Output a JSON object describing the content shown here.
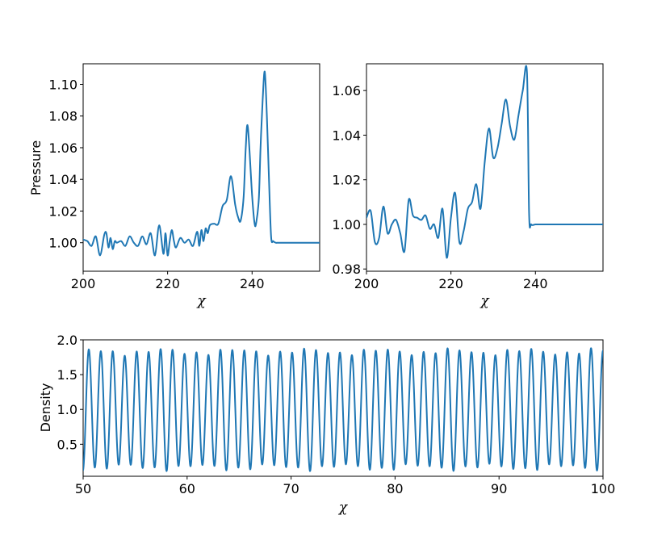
{
  "colors": {
    "series": "#1f77b4",
    "axes": "#000000",
    "background": "#ffffff"
  },
  "chart_data": [
    {
      "id": "top-left",
      "type": "line",
      "title": "",
      "xlabel": "χ",
      "ylabel": "Pressure",
      "xlim": [
        200,
        256
      ],
      "ylim": [
        0.982,
        1.113
      ],
      "xticks": [
        200,
        220,
        240
      ],
      "xtick_labels": [
        "200",
        "220",
        "240"
      ],
      "yticks": [
        1.0,
        1.02,
        1.04,
        1.06,
        1.08,
        1.1
      ],
      "ytick_labels": [
        "1.00",
        "1.02",
        "1.04",
        "1.06",
        "1.08",
        "1.10"
      ],
      "grid": false,
      "series": [
        {
          "x": [
            200,
            201,
            202,
            203,
            204,
            205,
            205.5,
            206,
            206.5,
            207,
            207.5,
            208,
            209,
            210,
            211,
            212,
            213,
            214,
            215,
            216,
            217,
            218,
            219,
            219.5,
            220,
            220.5,
            221,
            221.5,
            222,
            223,
            224,
            225,
            226,
            227,
            227.5,
            228,
            228.5,
            229,
            229.5,
            230,
            231,
            232,
            233,
            234,
            235,
            236,
            236.7,
            237.3,
            238,
            238.5,
            239,
            240,
            240.6,
            241,
            241.6,
            242,
            242.5,
            243,
            243.5,
            244,
            244.5,
            245,
            245.6,
            246,
            246.4,
            246.7,
            247,
            247.4,
            247.8,
            248.3,
            249,
            250,
            252,
            254,
            256
          ],
          "y": [
            1.002,
            1.001,
            0.998,
            1.004,
            0.992,
            1.005,
            1.006,
            0.997,
            1.003,
            0.996,
            1.001,
            1.0,
            1.001,
            0.998,
            1.004,
            1.0,
            0.998,
            1.004,
            0.999,
            1.006,
            0.992,
            1.011,
            0.993,
            1.006,
            0.992,
            1.001,
            1.008,
            1.001,
            0.997,
            1.003,
            1.0,
            1.002,
            0.998,
            1.007,
            0.998,
            1.008,
            1.001,
            1.009,
            1.006,
            1.011,
            1.012,
            1.012,
            1.023,
            1.027,
            1.042,
            1.024,
            1.016,
            1.014,
            1.029,
            1.06,
            1.073,
            1.03,
            1.012,
            1.013,
            1.028,
            1.06,
            1.09,
            1.108,
            1.08,
            1.04,
            1.004,
            1.001,
            1.0,
            1.0,
            1.0,
            1.0,
            1.0,
            1.0,
            1.0,
            1.0,
            1.0,
            1.0,
            1.0,
            1.0,
            1.0
          ],
          "x_corrected": [
            200,
            201,
            202,
            203,
            204,
            205,
            205.5,
            206,
            206.5,
            207,
            207.5,
            208,
            209,
            210,
            211,
            212,
            213,
            214,
            215,
            216,
            217,
            218,
            219,
            219.5,
            220,
            220.5,
            221,
            221.5,
            222,
            223,
            224,
            225,
            226,
            227,
            227.5,
            228,
            228.5,
            229,
            229.5,
            230,
            231,
            232,
            233,
            234,
            235,
            236,
            236.7,
            237.3,
            238,
            238.5,
            239,
            240,
            240.6,
            241,
            241.6,
            242,
            242.5,
            243,
            243.5,
            244,
            244.5,
            245,
            245.6,
            246,
            246.4,
            246.7,
            247,
            247.4,
            247.8,
            248.3,
            249,
            250,
            252,
            254,
            256
          ]
        }
      ]
    },
    {
      "id": "top-right",
      "type": "line",
      "title": "",
      "xlabel": "χ",
      "ylabel": "",
      "xlim": [
        200,
        256
      ],
      "ylim": [
        0.979,
        1.072
      ],
      "xticks": [
        200,
        220,
        240
      ],
      "xtick_labels": [
        "200",
        "220",
        "240"
      ],
      "yticks": [
        0.98,
        1.0,
        1.02,
        1.04,
        1.06
      ],
      "ytick_labels": [
        "0.98",
        "1.00",
        "1.02",
        "1.04",
        "1.06"
      ],
      "grid": false,
      "series": [
        {
          "x": [
            200,
            201,
            202,
            203,
            204,
            205,
            206,
            207,
            208,
            209,
            210,
            211,
            212,
            213,
            214,
            215,
            216,
            217,
            218,
            219,
            220,
            221,
            222,
            223,
            224,
            225,
            226,
            227,
            228,
            229,
            230,
            231,
            232,
            233,
            234,
            235,
            236,
            237,
            238,
            238.5,
            239,
            240,
            241,
            242,
            243,
            244,
            245,
            246,
            246.6,
            247,
            247.5,
            248,
            249,
            250,
            252,
            256
          ],
          "y": [
            1.003,
            1.006,
            0.992,
            0.994,
            1.008,
            0.996,
            1.0,
            1.002,
            0.996,
            0.988,
            1.011,
            1.004,
            1.003,
            1.002,
            1.004,
            0.998,
            1.0,
            0.994,
            1.007,
            0.985,
            1.003,
            1.014,
            0.992,
            0.997,
            1.007,
            1.01,
            1.018,
            1.007,
            1.028,
            1.043,
            1.03,
            1.034,
            1.045,
            1.056,
            1.044,
            1.038,
            1.049,
            1.06,
            1.068,
            1.005,
            1.0,
            1.0,
            1.0,
            1.0,
            1.0,
            1.0,
            1.0,
            1.0,
            1.0,
            1.0,
            1.0,
            1.0,
            1.0,
            1.0,
            1.0,
            1.0
          ]
        }
      ]
    },
    {
      "id": "bottom",
      "type": "line",
      "title": "",
      "xlabel": "χ",
      "ylabel": "Density",
      "xlim": [
        50,
        100
      ],
      "ylim": [
        0.04,
        2.0
      ],
      "xticks": [
        50,
        60,
        70,
        80,
        90,
        100
      ],
      "xtick_labels": [
        "50",
        "60",
        "70",
        "80",
        "90",
        "100"
      ],
      "yticks": [
        0.5,
        1.0,
        1.5,
        2.0
      ],
      "ytick_labels": [
        "0.5",
        "1.0",
        "1.5",
        "2.0"
      ],
      "grid": false,
      "series": [
        {
          "wave_period": 1.15,
          "x_start": 50,
          "x_end": 100,
          "y_min": 0.17,
          "y_max": 1.83
        }
      ]
    }
  ]
}
